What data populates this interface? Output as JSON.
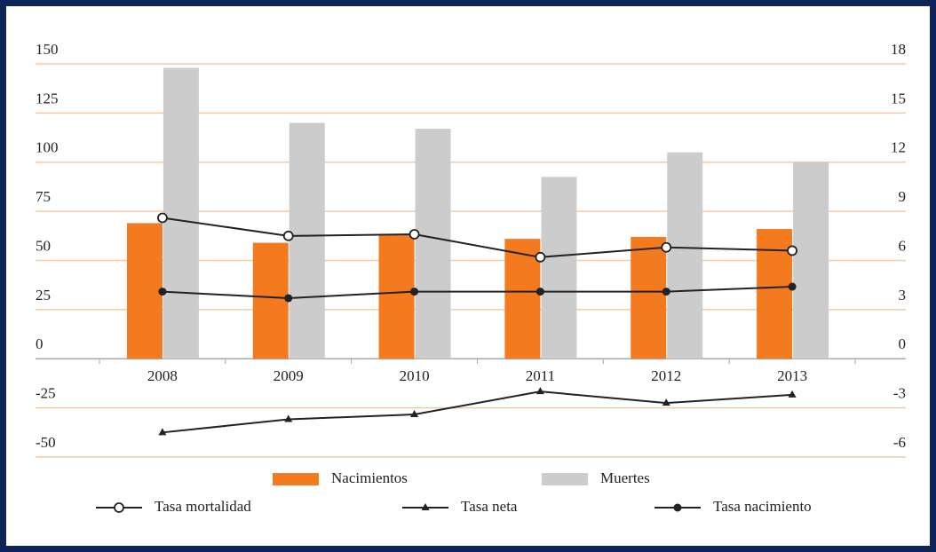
{
  "chart_data": {
    "type": "bar",
    "categories": [
      "2008",
      "2009",
      "2010",
      "2011",
      "2012",
      "2013"
    ],
    "series": [
      {
        "name": "Nacimientos",
        "type": "bar",
        "color": "#f47a20",
        "values": [
          69,
          59,
          63,
          61,
          62,
          66
        ]
      },
      {
        "name": "Muertes",
        "type": "bar",
        "color": "#cccccc",
        "values": [
          148,
          120,
          117,
          92.5,
          105,
          100
        ]
      },
      {
        "name": "Tasa mortalidad",
        "type": "line",
        "axis": "y2",
        "marker": "open-circle",
        "color": "#222222",
        "values": [
          8.6,
          7.5,
          7.6,
          6.2,
          6.8,
          6.6
        ]
      },
      {
        "name": "Tasa neta",
        "type": "line",
        "axis": "y2",
        "marker": "triangle",
        "color": "#222222",
        "values": [
          -4.5,
          -3.7,
          -3.4,
          -2.0,
          -2.7,
          -2.2
        ]
      },
      {
        "name": "Tasa nacimiento",
        "type": "line",
        "axis": "y2",
        "marker": "filled-circle",
        "color": "#222222",
        "values": [
          4.1,
          3.7,
          4.1,
          4.1,
          4.1,
          4.4
        ]
      }
    ],
    "ylim": [
      -50,
      150
    ],
    "yticks": [
      -50,
      -25,
      0,
      25,
      50,
      75,
      100,
      125,
      150
    ],
    "y2lim": [
      -6,
      18
    ],
    "y2ticks": [
      -6,
      -3,
      0,
      3,
      6,
      9,
      12,
      15,
      18
    ],
    "grid": true,
    "grid_color": "#f6c9a2",
    "legend": "bottom"
  }
}
